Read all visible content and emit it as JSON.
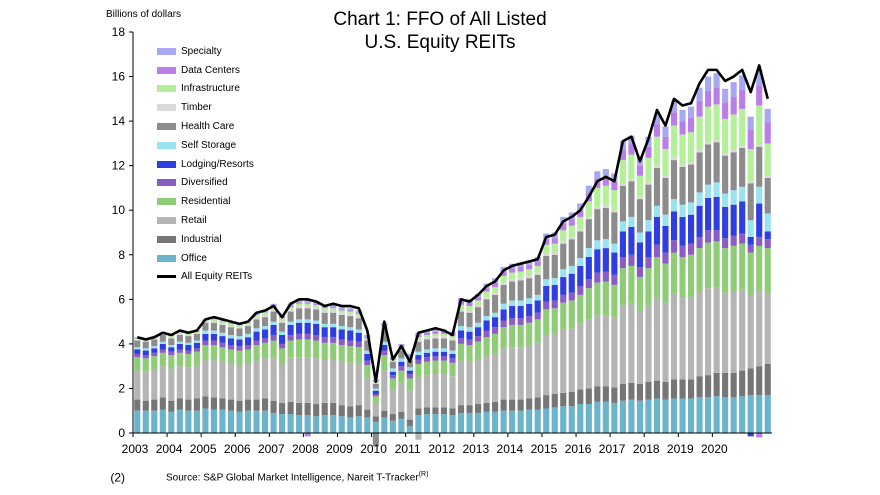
{
  "chart_data": {
    "type": "bar",
    "stacked": true,
    "title": "Chart 1: FFO of All Listed U.S. Equity REITs",
    "title_lines": [
      "Chart 1: FFO of All Listed",
      "U.S. Equity REITs"
    ],
    "ylabel": "Billions of dollars",
    "ylim": [
      -2,
      18
    ],
    "yticks": [
      "(2)",
      "0",
      "2",
      "4",
      "6",
      "8",
      "10",
      "12",
      "14",
      "16",
      "18"
    ],
    "x_tick_labels": [
      "2003",
      "2004",
      "2005",
      "2006",
      "2007",
      "2008",
      "2009",
      "2010",
      "2011",
      "2012",
      "2013",
      "2014",
      "2015",
      "2016",
      "2017",
      "2018",
      "2019",
      "2020"
    ],
    "quarters_per_year": 4,
    "source": "Source: S&P Global Market Intelligence, Nareit T-Tracker",
    "source_mark": "(R)",
    "legend_position": "top-left",
    "legend": [
      {
        "name": "Specialty",
        "color": "#a8a8f0"
      },
      {
        "name": "Data Centers",
        "color": "#b97ee8"
      },
      {
        "name": "Infrastructure",
        "color": "#b4ef9a"
      },
      {
        "name": "Timber",
        "color": "#d9d9d9"
      },
      {
        "name": "Health Care",
        "color": "#8c8c8c"
      },
      {
        "name": "Self Storage",
        "color": "#99e2f2"
      },
      {
        "name": "Lodging/Resorts",
        "color": "#2f3ee0"
      },
      {
        "name": "Diversified",
        "color": "#8a5cc6"
      },
      {
        "name": "Residential",
        "color": "#8fcc78"
      },
      {
        "name": "Retail",
        "color": "#b5b5b5"
      },
      {
        "name": "Industrial",
        "color": "#767676"
      },
      {
        "name": "Office",
        "color": "#6cb4cc"
      },
      {
        "name": "All Equity REITs",
        "color": "#000000",
        "kind": "line"
      }
    ],
    "line_series": {
      "name": "All Equity REITs",
      "values": [
        4.3,
        4.2,
        4.3,
        4.5,
        4.4,
        4.6,
        4.5,
        4.6,
        5.1,
        5.2,
        5.1,
        5.0,
        4.9,
        5.0,
        5.4,
        5.5,
        5.7,
        5.2,
        5.8,
        6.0,
        6.0,
        5.9,
        5.7,
        5.8,
        5.7,
        5.7,
        5.6,
        4.6,
        2.3,
        5.0,
        3.3,
        3.9,
        3.2,
        4.5,
        4.6,
        4.7,
        4.6,
        4.4,
        6.0,
        5.9,
        6.2,
        6.6,
        6.8,
        7.3,
        7.5,
        7.6,
        7.7,
        7.8,
        8.8,
        8.9,
        9.5,
        9.7,
        10.0,
        10.6,
        11.3,
        11.5,
        11.3,
        13.1,
        13.3,
        12.2,
        13.2,
        14.5,
        13.8,
        15.0,
        14.7,
        14.8,
        15.7,
        16.3,
        16.3,
        15.8,
        16.0,
        16.3,
        15.3,
        16.5,
        15.0
      ]
    },
    "series": [
      {
        "name": "Office",
        "color": "#6cb4cc",
        "values": [
          1.0,
          1.0,
          1.0,
          1.05,
          0.95,
          1.05,
          1.0,
          1.0,
          1.1,
          1.05,
          1.05,
          1.0,
          0.95,
          1.0,
          1.0,
          1.0,
          0.9,
          0.85,
          0.85,
          0.8,
          0.8,
          0.75,
          0.8,
          0.8,
          0.75,
          0.7,
          0.75,
          0.7,
          0.5,
          0.7,
          0.55,
          0.65,
          0.3,
          0.8,
          0.85,
          0.85,
          0.85,
          0.8,
          0.9,
          0.9,
          0.9,
          0.95,
          0.95,
          1.0,
          1.0,
          1.0,
          1.05,
          1.05,
          1.1,
          1.15,
          1.2,
          1.2,
          1.3,
          1.3,
          1.4,
          1.4,
          1.35,
          1.45,
          1.5,
          1.45,
          1.5,
          1.55,
          1.5,
          1.55,
          1.55,
          1.55,
          1.6,
          1.6,
          1.65,
          1.6,
          1.6,
          1.65,
          1.7,
          1.7,
          1.7
        ]
      },
      {
        "name": "Industrial",
        "color": "#767676",
        "values": [
          0.5,
          0.45,
          0.5,
          0.55,
          0.5,
          0.5,
          0.5,
          0.55,
          0.55,
          0.55,
          0.5,
          0.5,
          0.5,
          0.5,
          0.5,
          0.55,
          0.55,
          0.5,
          0.55,
          0.55,
          0.55,
          0.55,
          0.55,
          0.55,
          0.5,
          0.5,
          0.5,
          0.35,
          0.25,
          0.3,
          0.3,
          0.3,
          0.3,
          0.3,
          0.3,
          0.3,
          0.3,
          0.3,
          0.35,
          0.35,
          0.4,
          0.4,
          0.45,
          0.5,
          0.5,
          0.5,
          0.5,
          0.55,
          0.6,
          0.6,
          0.6,
          0.65,
          0.65,
          0.7,
          0.7,
          0.7,
          0.7,
          0.75,
          0.75,
          0.75,
          0.8,
          0.8,
          0.8,
          0.85,
          0.85,
          0.85,
          0.95,
          1.0,
          1.05,
          1.1,
          1.1,
          1.15,
          1.2,
          1.3,
          1.4
        ]
      },
      {
        "name": "Retail",
        "color": "#b5b5b5",
        "values": [
          1.3,
          1.3,
          1.35,
          1.4,
          1.45,
          1.45,
          1.45,
          1.5,
          1.65,
          1.7,
          1.65,
          1.6,
          1.6,
          1.6,
          1.75,
          1.8,
          1.95,
          1.75,
          2.0,
          2.05,
          2.05,
          2.05,
          1.95,
          1.95,
          1.95,
          1.95,
          1.85,
          1.4,
          0.6,
          1.8,
          1.1,
          1.3,
          1.3,
          1.4,
          1.45,
          1.5,
          1.5,
          1.45,
          2.0,
          1.95,
          2.0,
          2.1,
          2.15,
          2.3,
          2.35,
          2.35,
          2.4,
          2.45,
          2.7,
          2.7,
          2.85,
          2.85,
          2.95,
          3.1,
          3.2,
          3.2,
          3.15,
          3.55,
          3.55,
          3.25,
          3.45,
          3.75,
          3.55,
          3.85,
          3.65,
          3.7,
          3.8,
          3.9,
          3.85,
          3.6,
          3.65,
          3.65,
          3.25,
          3.4,
          3.2
        ]
      },
      {
        "name": "Residential",
        "color": "#8fcc78",
        "values": [
          0.6,
          0.6,
          0.6,
          0.6,
          0.6,
          0.6,
          0.6,
          0.6,
          0.65,
          0.65,
          0.65,
          0.65,
          0.65,
          0.65,
          0.7,
          0.7,
          0.75,
          0.7,
          0.75,
          0.8,
          0.8,
          0.8,
          0.75,
          0.75,
          0.75,
          0.75,
          0.75,
          0.6,
          0.3,
          0.7,
          0.5,
          0.55,
          0.55,
          0.6,
          0.6,
          0.6,
          0.6,
          0.6,
          0.75,
          0.75,
          0.8,
          0.85,
          0.9,
          0.95,
          1.0,
          1.0,
          1.0,
          1.05,
          1.15,
          1.15,
          1.2,
          1.25,
          1.3,
          1.4,
          1.45,
          1.5,
          1.45,
          1.65,
          1.7,
          1.55,
          1.65,
          1.8,
          1.75,
          1.85,
          1.85,
          1.9,
          1.95,
          2.05,
          2.05,
          2.0,
          2.05,
          2.05,
          1.95,
          2.0,
          2.0
        ]
      },
      {
        "name": "Diversified",
        "color": "#8a5cc6",
        "values": [
          0.15,
          0.15,
          0.15,
          0.15,
          0.15,
          0.15,
          0.15,
          0.15,
          0.2,
          0.2,
          0.2,
          0.2,
          0.2,
          0.2,
          0.2,
          0.2,
          0.25,
          0.2,
          0.25,
          0.25,
          0.25,
          0.25,
          0.25,
          0.25,
          0.25,
          0.25,
          0.25,
          0.2,
          0.1,
          0.2,
          0.15,
          0.2,
          0.2,
          0.2,
          0.2,
          0.2,
          0.2,
          0.2,
          0.25,
          0.25,
          0.25,
          0.3,
          0.3,
          0.3,
          0.3,
          0.3,
          0.3,
          0.3,
          0.35,
          0.35,
          0.35,
          0.35,
          0.4,
          0.4,
          0.45,
          0.45,
          0.45,
          0.5,
          0.5,
          0.45,
          0.5,
          0.55,
          0.5,
          0.55,
          0.5,
          0.5,
          0.5,
          0.55,
          0.5,
          0.45,
          0.45,
          0.45,
          0.35,
          0.4,
          0.4
        ]
      },
      {
        "name": "Lodging/Resorts",
        "color": "#2f3ee0",
        "values": [
          0.2,
          0.2,
          0.2,
          0.25,
          0.2,
          0.25,
          0.25,
          0.25,
          0.3,
          0.3,
          0.3,
          0.3,
          0.3,
          0.35,
          0.4,
          0.4,
          0.45,
          0.4,
          0.45,
          0.5,
          0.5,
          0.5,
          0.45,
          0.45,
          0.45,
          0.45,
          0.4,
          0.3,
          0.15,
          0.25,
          0.15,
          0.2,
          0.15,
          0.2,
          0.2,
          0.2,
          0.2,
          0.2,
          0.35,
          0.35,
          0.4,
          0.45,
          0.45,
          0.5,
          0.55,
          0.55,
          0.55,
          0.55,
          0.7,
          0.7,
          0.8,
          0.85,
          0.9,
          1.0,
          1.05,
          1.05,
          1.0,
          1.15,
          1.25,
          1.1,
          1.15,
          1.25,
          1.2,
          1.3,
          1.3,
          1.3,
          1.4,
          1.45,
          1.5,
          1.4,
          1.4,
          1.45,
          0.35,
          1.5,
          0.35
        ]
      },
      {
        "name": "Self Storage",
        "color": "#99e2f2",
        "values": [
          0.1,
          0.1,
          0.1,
          0.1,
          0.1,
          0.1,
          0.1,
          0.1,
          0.15,
          0.15,
          0.15,
          0.15,
          0.15,
          0.15,
          0.15,
          0.15,
          0.15,
          0.15,
          0.15,
          0.15,
          0.15,
          0.15,
          0.15,
          0.15,
          0.15,
          0.15,
          0.15,
          0.15,
          0.1,
          0.15,
          0.15,
          0.15,
          0.15,
          0.15,
          0.15,
          0.15,
          0.15,
          0.15,
          0.2,
          0.2,
          0.2,
          0.2,
          0.2,
          0.25,
          0.25,
          0.25,
          0.25,
          0.25,
          0.3,
          0.3,
          0.35,
          0.35,
          0.35,
          0.4,
          0.4,
          0.4,
          0.4,
          0.45,
          0.45,
          0.45,
          0.5,
          0.5,
          0.5,
          0.55,
          0.55,
          0.55,
          0.6,
          0.6,
          0.65,
          0.6,
          0.65,
          0.65,
          0.75,
          0.75,
          0.8
        ]
      },
      {
        "name": "Health Care",
        "color": "#8c8c8c",
        "values": [
          0.3,
          0.3,
          0.3,
          0.3,
          0.3,
          0.3,
          0.3,
          0.3,
          0.35,
          0.35,
          0.35,
          0.35,
          0.35,
          0.35,
          0.4,
          0.4,
          0.45,
          0.4,
          0.45,
          0.5,
          0.5,
          0.5,
          0.5,
          0.5,
          0.5,
          0.5,
          0.5,
          0.45,
          0.2,
          0.5,
          0.3,
          0.35,
          0.3,
          0.45,
          0.45,
          0.45,
          0.45,
          0.45,
          0.65,
          0.65,
          0.7,
          0.75,
          0.8,
          0.85,
          0.85,
          0.9,
          0.9,
          0.9,
          1.05,
          1.05,
          1.15,
          1.2,
          1.2,
          1.3,
          1.4,
          1.4,
          1.4,
          1.6,
          1.6,
          1.5,
          1.6,
          1.7,
          1.65,
          1.75,
          1.7,
          1.7,
          1.8,
          1.8,
          1.8,
          1.7,
          1.7,
          1.75,
          1.65,
          1.8,
          1.6
        ]
      },
      {
        "name": "Timber",
        "color": "#d9d9d9",
        "values": [
          0.05,
          0.05,
          0.05,
          0.05,
          0.05,
          0.05,
          0.05,
          0.05,
          0.05,
          0.05,
          0.05,
          0.05,
          0.05,
          0.05,
          0.1,
          0.1,
          0.1,
          0.1,
          0.1,
          0.1,
          0.1,
          0.1,
          0.1,
          0.1,
          0.1,
          0.1,
          0.1,
          0.05,
          0.05,
          0.1,
          0.05,
          0.05,
          0.05,
          0.1,
          0.1,
          0.1,
          0.1,
          0.1,
          0.1,
          0.1,
          0.1,
          0.1,
          0.1,
          0.1,
          0.1,
          0.1,
          0.1,
          0.1,
          0.1,
          0.1,
          0.1,
          0.1,
          0.1,
          0.1,
          0.1,
          0.1,
          0.1,
          0.1,
          0.1,
          0.1,
          0.1,
          0.1,
          0.1,
          0.15,
          0.1,
          0.1,
          0.1,
          0.1,
          0.1,
          0.1,
          0.1,
          0.1,
          0.1,
          0.1,
          0.1
        ]
      },
      {
        "name": "Infrastructure",
        "color": "#b4ef9a",
        "values": [
          0.05,
          0.05,
          0.05,
          0.05,
          0.05,
          0.05,
          0.05,
          0.05,
          0.05,
          0.1,
          0.1,
          0.1,
          0.1,
          0.1,
          0.1,
          0.1,
          0.1,
          0.1,
          0.1,
          0.1,
          0.1,
          0.1,
          0.1,
          0.1,
          0.1,
          0.1,
          0.1,
          0.05,
          0.05,
          0.1,
          0.05,
          0.1,
          0.1,
          0.1,
          0.1,
          0.1,
          0.1,
          0.1,
          0.2,
          0.2,
          0.2,
          0.25,
          0.25,
          0.3,
          0.3,
          0.3,
          0.3,
          0.3,
          0.4,
          0.4,
          0.5,
          0.5,
          0.55,
          0.7,
          0.85,
          0.9,
          0.9,
          1.05,
          1.1,
          0.95,
          1.1,
          1.3,
          1.2,
          1.4,
          1.35,
          1.35,
          1.5,
          1.6,
          1.6,
          1.55,
          1.6,
          1.65,
          1.45,
          1.75,
          1.45
        ]
      },
      {
        "name": "Data Centers",
        "color": "#b97ee8",
        "values": [
          0.0,
          0.0,
          0.0,
          0.0,
          0.0,
          0.0,
          0.0,
          0.0,
          0.0,
          0.0,
          0.0,
          0.0,
          0.0,
          0.0,
          0.0,
          0.0,
          0.05,
          0.05,
          0.05,
          0.05,
          0.05,
          0.05,
          0.05,
          0.05,
          0.05,
          0.05,
          0.05,
          0.05,
          0.05,
          0.05,
          0.05,
          0.05,
          0.05,
          0.1,
          0.1,
          0.1,
          0.1,
          0.1,
          0.15,
          0.15,
          0.15,
          0.15,
          0.2,
          0.2,
          0.2,
          0.2,
          0.2,
          0.2,
          0.25,
          0.25,
          0.3,
          0.3,
          0.3,
          0.35,
          0.4,
          0.4,
          0.4,
          0.45,
          0.45,
          0.45,
          0.5,
          0.55,
          0.55,
          0.6,
          0.6,
          0.65,
          0.7,
          0.7,
          0.75,
          0.75,
          0.8,
          0.85,
          0.85,
          0.9,
          0.95
        ]
      },
      {
        "name": "Specialty",
        "color": "#a8a8f0",
        "values": [
          0.05,
          0.05,
          0.05,
          0.05,
          0.05,
          0.05,
          0.05,
          0.05,
          0.05,
          0.05,
          0.05,
          0.05,
          0.05,
          0.05,
          0.1,
          0.1,
          0.1,
          0.1,
          0.1,
          0.1,
          0.1,
          0.1,
          0.1,
          0.1,
          0.1,
          0.1,
          0.1,
          0.1,
          0.05,
          0.1,
          0.05,
          0.1,
          0.1,
          0.1,
          0.1,
          0.1,
          0.1,
          0.1,
          0.15,
          0.15,
          0.15,
          0.2,
          0.2,
          0.2,
          0.2,
          0.2,
          0.2,
          0.2,
          0.25,
          0.25,
          0.3,
          0.3,
          0.3,
          0.35,
          0.35,
          0.35,
          0.35,
          0.4,
          0.4,
          0.4,
          0.45,
          0.45,
          0.45,
          0.5,
          0.5,
          0.5,
          0.6,
          0.65,
          0.65,
          0.6,
          0.65,
          0.65,
          0.6,
          0.7,
          0.6
        ]
      }
    ],
    "negative_bars": [
      {
        "series": "Data Centers",
        "index": 20,
        "value": -0.15
      },
      {
        "series": "Health Care",
        "index": 28,
        "value": -0.6
      },
      {
        "series": "Retail",
        "index": 33,
        "value": -0.3
      },
      {
        "series": "Lodging/Resorts",
        "index": 72,
        "value": -0.15
      },
      {
        "series": "Data Centers",
        "index": 73,
        "value": -0.2
      }
    ],
    "grid": false
  }
}
